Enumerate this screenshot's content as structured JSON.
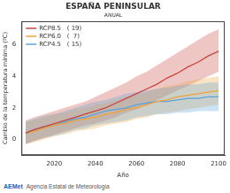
{
  "chart_data": {
    "type": "line",
    "title": "ESPAÑA PENINSULAR",
    "subtitle": "ANUAL",
    "x_label": "Año",
    "y_label": "Cambio de la temperatura mínima (ºC)",
    "footer": "Agencia Estatal de Meteorología",
    "logo": "AEMet",
    "x": [
      2006,
      2010,
      2015,
      2020,
      2025,
      2030,
      2035,
      2040,
      2045,
      2050,
      2055,
      2060,
      2065,
      2070,
      2075,
      2080,
      2085,
      2090,
      2095,
      2100
    ],
    "xlim": [
      2004,
      2103
    ],
    "xticks": [
      2020,
      2040,
      2060,
      2080,
      2100
    ],
    "ylim": [
      -1,
      7.5
    ],
    "yticks": [
      0,
      2,
      4,
      6
    ],
    "grid": false,
    "legend": "top-left",
    "series": [
      {
        "name": "RCP8.5   ( 19)",
        "color": "#c8463d",
        "values": [
          0.4,
          0.6,
          0.8,
          1.0,
          1.2,
          1.4,
          1.6,
          1.8,
          2.0,
          2.3,
          2.6,
          2.9,
          3.2,
          3.5,
          3.9,
          4.2,
          4.6,
          4.9,
          5.3,
          5.6
        ],
        "lower": [
          -0.3,
          -0.1,
          0.1,
          0.3,
          0.5,
          0.7,
          0.9,
          1.0,
          1.2,
          1.4,
          1.7,
          1.9,
          2.2,
          2.5,
          2.8,
          3.1,
          3.4,
          3.7,
          4.0,
          4.3
        ],
        "upper": [
          1.2,
          1.4,
          1.6,
          1.8,
          2.0,
          2.2,
          2.4,
          2.7,
          3.0,
          3.3,
          3.6,
          4.0,
          4.3,
          4.7,
          5.1,
          5.5,
          5.9,
          6.3,
          6.7,
          7.0
        ]
      },
      {
        "name": "RCP6.0   (  7)",
        "color": "#f0a238",
        "values": [
          0.4,
          0.5,
          0.7,
          0.9,
          1.0,
          1.2,
          1.3,
          1.4,
          1.6,
          1.7,
          1.9,
          2.0,
          2.2,
          2.4,
          2.5,
          2.7,
          2.8,
          2.9,
          3.0,
          3.1
        ],
        "lower": [
          -0.3,
          -0.2,
          0,
          0.2,
          0.3,
          0.5,
          0.6,
          0.7,
          0.9,
          1.0,
          1.1,
          1.3,
          1.4,
          1.6,
          1.7,
          1.8,
          1.9,
          2.0,
          2.1,
          2.2
        ],
        "upper": [
          1.1,
          1.2,
          1.4,
          1.6,
          1.7,
          1.9,
          2.0,
          2.2,
          2.3,
          2.5,
          2.7,
          2.8,
          3.0,
          3.2,
          3.4,
          3.5,
          3.7,
          3.8,
          3.9,
          4.0
        ]
      },
      {
        "name": "RCP4.5   ( 15)",
        "color": "#5ba3d8",
        "values": [
          0.4,
          0.6,
          0.8,
          0.9,
          1.1,
          1.3,
          1.4,
          1.6,
          1.8,
          1.9,
          2.0,
          2.2,
          2.3,
          2.4,
          2.4,
          2.5,
          2.6,
          2.6,
          2.7,
          2.7
        ],
        "lower": [
          -0.3,
          -0.1,
          0.1,
          0.2,
          0.4,
          0.6,
          0.7,
          0.9,
          1.0,
          1.1,
          1.2,
          1.4,
          1.5,
          1.6,
          1.6,
          1.7,
          1.7,
          1.8,
          1.8,
          1.8
        ],
        "upper": [
          1.1,
          1.3,
          1.5,
          1.6,
          1.8,
          2.0,
          2.2,
          2.4,
          2.5,
          2.7,
          2.9,
          3.0,
          3.1,
          3.2,
          3.3,
          3.4,
          3.5,
          3.5,
          3.6,
          3.6
        ]
      }
    ]
  }
}
